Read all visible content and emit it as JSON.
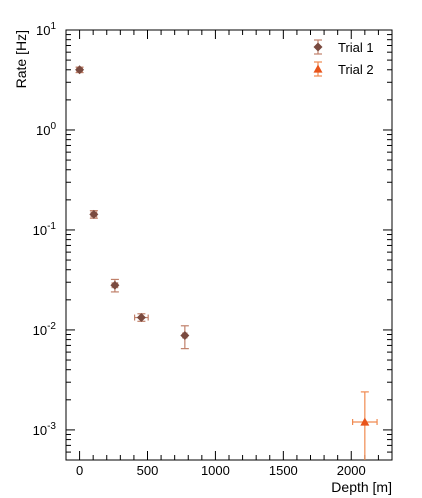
{
  "chart_data": {
    "type": "scatter",
    "xlabel": "Depth [m]",
    "ylabel": "Rate [Hz]",
    "xlim": [
      -100,
      2300
    ],
    "ylim": [
      0.0005,
      10
    ],
    "y_scale": "log",
    "grid": false,
    "legend_position": "top-right",
    "x_ticks": [
      0,
      500,
      1000,
      1500,
      2000
    ],
    "y_ticks": [
      {
        "value": 10,
        "base": "10",
        "exp": "1"
      },
      {
        "value": 1,
        "base": "10",
        "exp": "0"
      },
      {
        "value": 0.1,
        "base": "10",
        "exp": "-1"
      },
      {
        "value": 0.01,
        "base": "10",
        "exp": "-2"
      },
      {
        "value": 0.001,
        "base": "10",
        "exp": "-3"
      }
    ],
    "series": [
      {
        "name": "Trial 1",
        "marker": "diamond",
        "color": "#7a4a3f",
        "err_color": "#c0806a",
        "points": [
          {
            "x": 0,
            "y": 4.0,
            "xerr": 20,
            "ylo": 3.75,
            "yhi": 4.25
          },
          {
            "x": 105,
            "y": 0.143,
            "xerr": 20,
            "ylo": 0.131,
            "yhi": 0.156
          },
          {
            "x": 260,
            "y": 0.028,
            "xerr": 20,
            "ylo": 0.024,
            "yhi": 0.032
          },
          {
            "x": 455,
            "y": 0.0133,
            "xerr": 50,
            "ylo": 0.0122,
            "yhi": 0.0145
          },
          {
            "x": 775,
            "y": 0.0088,
            "xerr": 15,
            "ylo": 0.0065,
            "yhi": 0.011
          }
        ]
      },
      {
        "name": "Trial 2",
        "marker": "triangle",
        "color": "#e8541a",
        "err_color": "#f08a50",
        "points": [
          {
            "x": 2100,
            "y": 0.0012,
            "xerr": 90,
            "ylo": 0.0005,
            "yhi": 0.0024
          }
        ]
      }
    ]
  }
}
